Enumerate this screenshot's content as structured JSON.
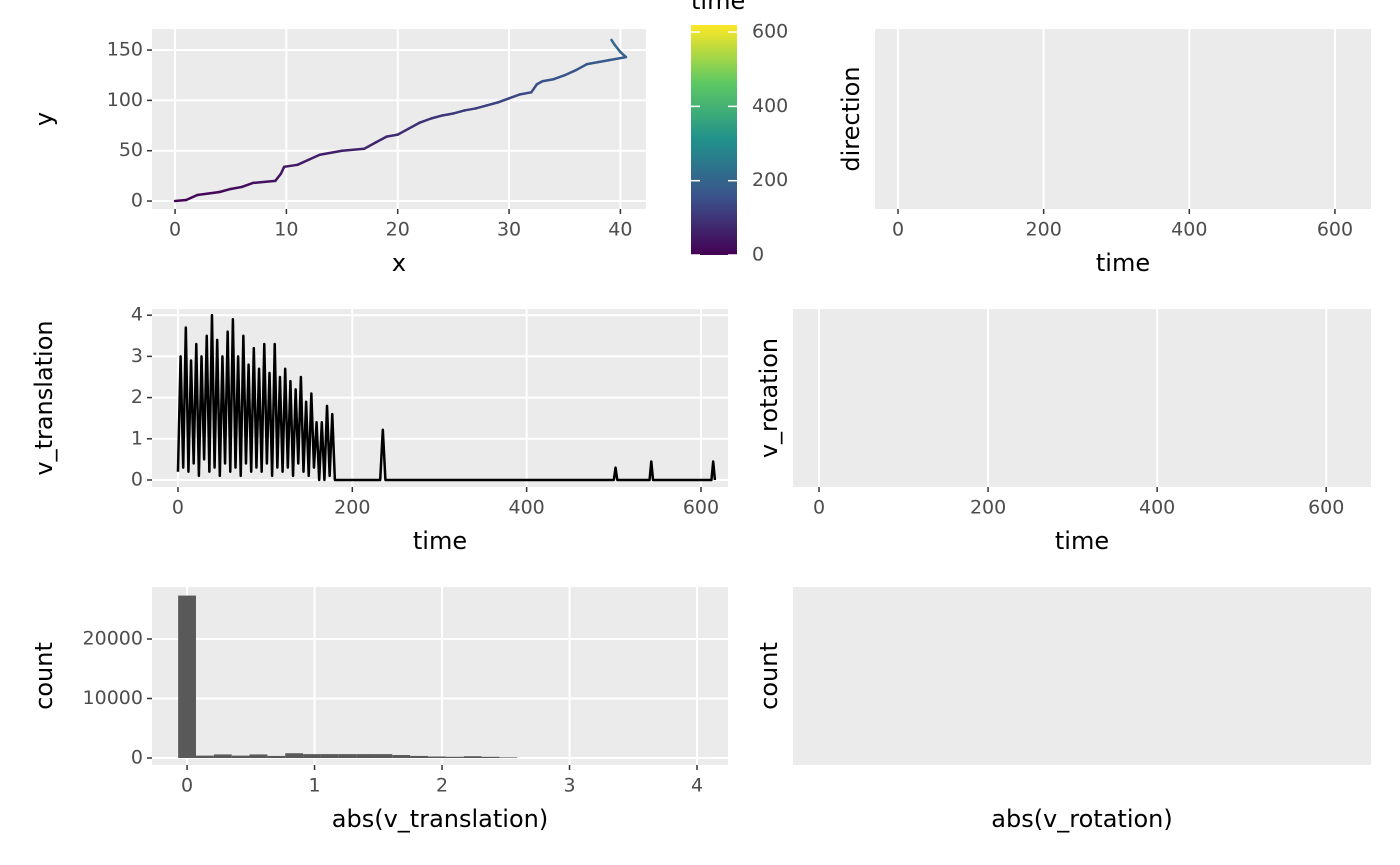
{
  "chart_data": [
    {
      "type": "line",
      "xlabel": "x",
      "ylabel": "y",
      "x": [
        0,
        1,
        2,
        4,
        5,
        6,
        7,
        9,
        9.5,
        9.8,
        11,
        12,
        13,
        15,
        17,
        18,
        19,
        20,
        21,
        22,
        23,
        24,
        25,
        26,
        27,
        28,
        29,
        30,
        31,
        32,
        32.5,
        33,
        34,
        35,
        36,
        37,
        38,
        39,
        40.5,
        40,
        39.5,
        39.2
      ],
      "values": [
        0,
        1,
        6,
        9,
        12,
        14,
        18,
        20,
        27,
        34,
        36,
        41,
        46,
        50,
        52,
        58,
        64,
        66,
        72,
        78,
        82,
        85,
        87,
        90,
        92,
        95,
        98,
        102,
        106,
        108,
        116,
        119,
        121,
        125,
        130,
        136,
        138,
        140,
        143,
        148,
        155,
        160
      ],
      "color_values": [
        0,
        5,
        10,
        15,
        20,
        25,
        30,
        35,
        40,
        45,
        50,
        55,
        60,
        65,
        70,
        75,
        80,
        85,
        90,
        95,
        100,
        105,
        110,
        115,
        120,
        125,
        130,
        135,
        140,
        145,
        150,
        155,
        160,
        165,
        170,
        175,
        180,
        185,
        190,
        200,
        215,
        235
      ],
      "colormap": "viridis",
      "colorbar": {
        "title": "time",
        "lim": [
          0,
          619
        ],
        "ticks": [
          0,
          200,
          400,
          600
        ]
      },
      "xlim": [
        -2.07,
        42.3
      ],
      "xticks": [
        0,
        10,
        20,
        30,
        40
      ],
      "ylim": [
        -7.9,
        170.9
      ],
      "yticks": [
        0,
        50,
        100,
        150
      ],
      "grid": true
    },
    {
      "type": "line",
      "xlabel": "time",
      "ylabel": "direction",
      "xlim": [
        -31.6,
        649.5
      ],
      "xticks": [
        0,
        200,
        400,
        600
      ],
      "grid": true
    },
    {
      "type": "line",
      "xlabel": "time",
      "ylabel": "v_translation",
      "color": "#000000",
      "x": [
        0,
        3,
        6,
        9,
        12,
        15,
        18,
        21,
        24,
        27,
        30,
        33,
        36,
        39,
        42,
        45,
        48,
        51,
        54,
        57,
        60,
        63,
        66,
        69,
        72,
        75,
        78,
        81,
        84,
        87,
        90,
        93,
        96,
        99,
        102,
        105,
        108,
        111,
        114,
        117,
        120,
        123,
        126,
        129,
        132,
        135,
        138,
        141,
        144,
        147,
        150,
        153,
        156,
        159,
        162,
        165,
        168,
        171,
        174,
        177,
        180,
        183,
        232,
        235,
        238,
        500,
        502,
        504,
        541,
        543,
        545,
        612,
        614,
        616
      ],
      "values": [
        0.2,
        3.0,
        0.3,
        3.7,
        0.2,
        2.9,
        0.4,
        3.3,
        0.1,
        3.0,
        0.5,
        3.5,
        0.2,
        4.0,
        0.3,
        3.4,
        0.1,
        3.0,
        0.4,
        3.6,
        0.2,
        3.9,
        0.3,
        3.0,
        0.1,
        3.5,
        0.4,
        2.8,
        0.2,
        3.2,
        0.3,
        2.7,
        0.2,
        3.3,
        0.4,
        2.6,
        0.1,
        3.3,
        0.3,
        2.5,
        0.2,
        2.7,
        0.3,
        2.4,
        0.1,
        2.2,
        0.4,
        2.5,
        0.2,
        1.9,
        0.1,
        2.1,
        0.3,
        1.4,
        0.0,
        1.4,
        0.0,
        1.8,
        0.1,
        1.6,
        0.0,
        0,
        0,
        1.22,
        0,
        0,
        0.3,
        0,
        0,
        0.45,
        0,
        0,
        0.45,
        0
      ],
      "xlim": [
        -29.8,
        631
      ],
      "xticks": [
        0,
        200,
        400,
        600
      ],
      "ylim": [
        -0.17,
        4.15
      ],
      "yticks": [
        0,
        1,
        2,
        3,
        4
      ],
      "grid": true
    },
    {
      "type": "line",
      "xlabel": "time",
      "ylabel": "v_rotation",
      "xlim": [
        -30.8,
        653
      ],
      "xticks": [
        0,
        200,
        400,
        600
      ],
      "grid": true
    },
    {
      "type": "histogram",
      "xlabel": "abs(v_translation)",
      "ylabel": "count",
      "color": "#595959",
      "bins": [
        -0.07,
        0.07,
        0.21,
        0.35,
        0.49,
        0.63,
        0.77,
        0.91,
        1.05,
        1.19,
        1.33,
        1.47,
        1.61,
        1.75,
        1.89,
        2.03,
        2.17,
        2.31,
        2.45,
        2.59,
        2.73,
        2.87,
        3.01,
        3.15,
        3.29,
        3.43,
        3.57,
        3.71,
        3.85,
        3.99,
        4.13
      ],
      "values": [
        27300,
        400,
        600,
        400,
        600,
        350,
        800,
        650,
        650,
        650,
        650,
        650,
        500,
        350,
        250,
        200,
        300,
        200,
        100,
        0,
        0,
        0,
        0,
        0,
        0,
        0,
        0,
        0,
        0,
        1
      ],
      "xlim": [
        -0.275,
        4.243
      ],
      "xticks": [
        0,
        1,
        2,
        3,
        4
      ],
      "ylim": [
        -1176,
        28740
      ],
      "yticks": [
        0,
        10000,
        20000
      ],
      "grid": true
    },
    {
      "type": "histogram",
      "xlabel": "abs(v_rotation)",
      "ylabel": "count"
    }
  ]
}
